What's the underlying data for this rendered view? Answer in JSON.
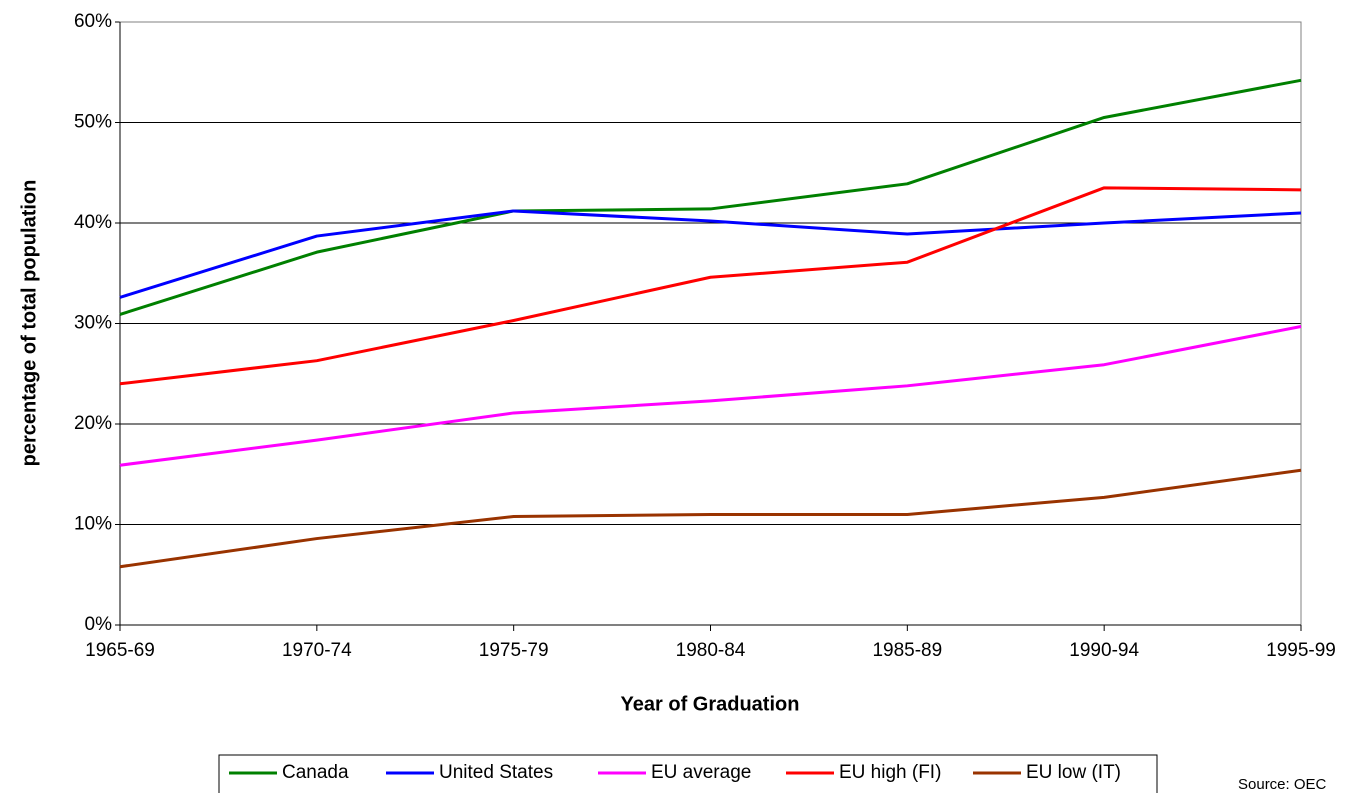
{
  "chart_data": {
    "type": "line",
    "x_label": "Year of Graduation",
    "y_label": "percentage of total population",
    "source": "Source: OEC",
    "categories": [
      "1965-69",
      "1970-74",
      "1975-79",
      "1980-84",
      "1985-89",
      "1990-94",
      "1995-99"
    ],
    "series": [
      {
        "name": "Canada",
        "color": "#008000",
        "values": [
          30.9,
          37.1,
          41.2,
          41.4,
          43.9,
          50.5,
          54.2
        ]
      },
      {
        "name": "United States",
        "color": "#0000ff",
        "values": [
          32.6,
          38.7,
          41.2,
          40.2,
          38.9,
          40.0,
          41.0
        ]
      },
      {
        "name": "EU average",
        "color": "#ff00ff",
        "values": [
          15.9,
          18.4,
          21.1,
          22.3,
          23.8,
          25.9,
          29.7
        ]
      },
      {
        "name": "EU high (FI)",
        "color": "#ff0000",
        "values": [
          24.0,
          26.3,
          30.3,
          34.6,
          36.1,
          43.5,
          43.3
        ]
      },
      {
        "name": "EU low (IT)",
        "color": "#993300",
        "values": [
          5.8,
          8.6,
          10.8,
          11.0,
          11.0,
          12.7,
          15.4
        ]
      }
    ],
    "ylim": [
      0,
      60
    ],
    "yticks": [
      {
        "value": 0,
        "label": "0%"
      },
      {
        "value": 10,
        "label": "10%"
      },
      {
        "value": 20,
        "label": "20%"
      },
      {
        "value": 30,
        "label": "30%"
      },
      {
        "value": 40,
        "label": "40%"
      },
      {
        "value": 50,
        "label": "50%"
      },
      {
        "value": 60,
        "label": "60%"
      }
    ],
    "grid": true,
    "legend": "bottom"
  }
}
